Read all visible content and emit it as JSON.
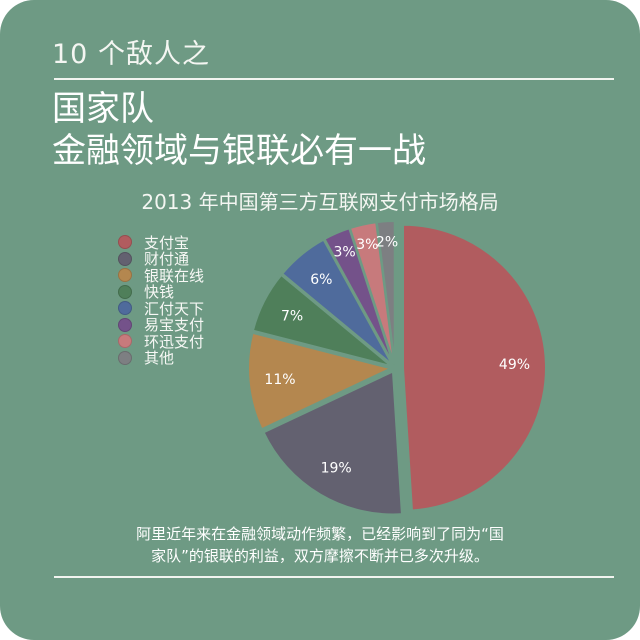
{
  "header": {
    "series_label": "10 个敌人之",
    "headline_line1": "国家队",
    "headline_line2": "金融领域与银联必有一战"
  },
  "chart_data": {
    "type": "pie",
    "title": "2013 年中国第三方互联网支付市场格局",
    "slices": [
      {
        "label": "支付宝",
        "value": 49,
        "display": "49%",
        "color": "#b15c5f"
      },
      {
        "label": "财付通",
        "value": 19,
        "display": "19%",
        "color": "#636170"
      },
      {
        "label": "银联在线",
        "value": 11,
        "display": "11%",
        "color": "#b4874f"
      },
      {
        "label": "快钱",
        "value": 7,
        "display": "7%",
        "color": "#4f7f5a"
      },
      {
        "label": "汇付天下",
        "value": 6,
        "display": "6%",
        "color": "#4f6b9c"
      },
      {
        "label": "易宝支付",
        "value": 3,
        "display": "3%",
        "color": "#74528a"
      },
      {
        "label": "环迅支付",
        "value": 3,
        "display": "3%",
        "color": "#c77a7c"
      },
      {
        "label": "其他",
        "value": 2,
        "display": "2%",
        "color": "#7d7f82"
      }
    ],
    "legend_position": "left"
  },
  "caption": {
    "line1": "阿里近年来在金融领域动作频繁，已经影响到了同为“国",
    "line2": "家队”的银联的利益，双方摩擦不断并已多次升级。"
  },
  "colors": {
    "background": "#6e9a84",
    "text": "#ffffff"
  }
}
